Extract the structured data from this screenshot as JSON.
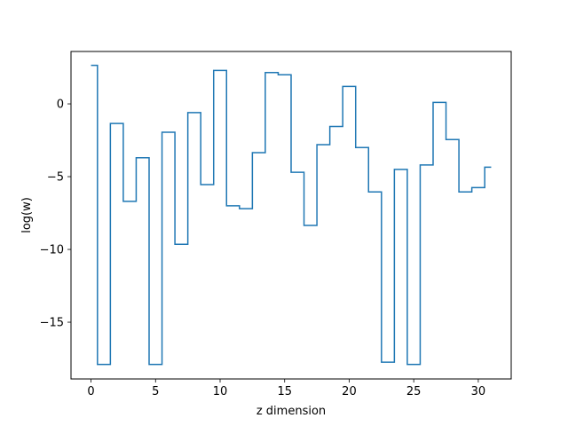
{
  "chart_data": {
    "type": "line",
    "drawstyle": "steps-mid",
    "xlabel": "z dimension",
    "ylabel": "log(w)",
    "xlim": [
      -1.55,
      32.55
    ],
    "ylim": [
      -18.9,
      3.6
    ],
    "xticks": [
      0,
      5,
      10,
      15,
      20,
      25,
      30
    ],
    "yticks": [
      -15,
      -10,
      -5,
      0
    ],
    "grid": false,
    "line_color": "#1f77b4",
    "x": [
      0,
      1,
      2,
      3,
      4,
      5,
      6,
      7,
      8,
      9,
      10,
      11,
      12,
      13,
      14,
      15,
      16,
      17,
      18,
      19,
      20,
      21,
      22,
      23,
      24,
      25,
      26,
      27,
      28,
      29,
      30,
      31
    ],
    "y": [
      2.65,
      -17.9,
      -1.35,
      -6.7,
      -3.7,
      -17.9,
      -1.95,
      -9.65,
      -0.6,
      -5.55,
      2.3,
      -7.0,
      -7.2,
      -3.35,
      2.15,
      2.0,
      -4.7,
      -8.35,
      -2.8,
      -1.55,
      1.2,
      -3.0,
      -6.05,
      -17.75,
      -4.5,
      -17.9,
      -4.2,
      0.1,
      -2.45,
      -6.05,
      -5.75,
      -4.35
    ]
  }
}
